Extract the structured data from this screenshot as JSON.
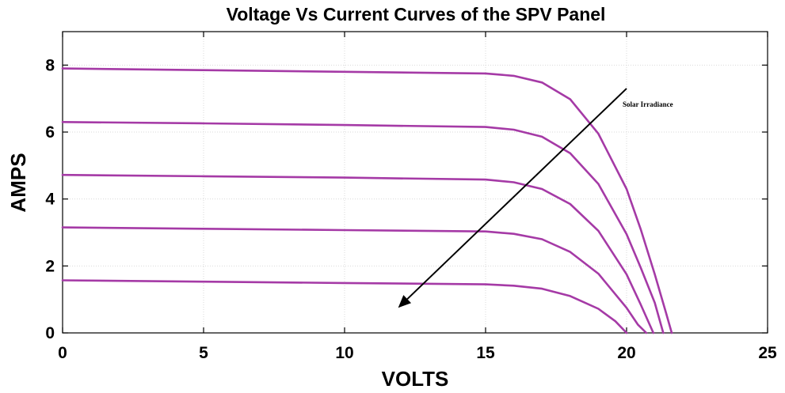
{
  "chart_data": {
    "type": "line",
    "title": "Voltage Vs Current Curves of the SPV Panel",
    "xlabel": "VOLTS",
    "ylabel": "AMPS",
    "xlim": [
      0,
      25
    ],
    "ylim": [
      0,
      9
    ],
    "xticks": [
      0,
      5,
      10,
      15,
      20,
      25
    ],
    "yticks": [
      0,
      2,
      4,
      6,
      8
    ],
    "grid": true,
    "line_color": "#a53aa6",
    "annotation": {
      "text": "Solar Irradiance",
      "arrow_from": [
        20.0,
        7.3
      ],
      "arrow_to": [
        11.9,
        0.75
      ]
    },
    "series": [
      {
        "values": [
          [
            0,
            7.9
          ],
          [
            5,
            7.85
          ],
          [
            10,
            7.8
          ],
          [
            15,
            7.75
          ],
          [
            16,
            7.68
          ],
          [
            17,
            7.48
          ],
          [
            18,
            6.98
          ],
          [
            19,
            5.95
          ],
          [
            20,
            4.3
          ],
          [
            20.5,
            3.1
          ],
          [
            21,
            1.75
          ],
          [
            21.4,
            0.6
          ],
          [
            21.6,
            0
          ]
        ]
      },
      {
        "values": [
          [
            0,
            6.3
          ],
          [
            5,
            6.26
          ],
          [
            10,
            6.21
          ],
          [
            15,
            6.15
          ],
          [
            16,
            6.07
          ],
          [
            17,
            5.86
          ],
          [
            18,
            5.37
          ],
          [
            19,
            4.45
          ],
          [
            20,
            2.95
          ],
          [
            20.5,
            1.95
          ],
          [
            21,
            0.9
          ],
          [
            21.3,
            0
          ]
        ]
      },
      {
        "values": [
          [
            0,
            4.72
          ],
          [
            5,
            4.68
          ],
          [
            10,
            4.64
          ],
          [
            15,
            4.58
          ],
          [
            16,
            4.5
          ],
          [
            17,
            4.3
          ],
          [
            18,
            3.85
          ],
          [
            19,
            3.05
          ],
          [
            20,
            1.75
          ],
          [
            20.5,
            0.85
          ],
          [
            20.95,
            0
          ]
        ]
      },
      {
        "values": [
          [
            0,
            3.15
          ],
          [
            5,
            3.11
          ],
          [
            10,
            3.07
          ],
          [
            15,
            3.03
          ],
          [
            16,
            2.96
          ],
          [
            17,
            2.8
          ],
          [
            18,
            2.42
          ],
          [
            19,
            1.77
          ],
          [
            20,
            0.75
          ],
          [
            20.4,
            0.25
          ],
          [
            20.7,
            0
          ]
        ]
      },
      {
        "values": [
          [
            0,
            1.57
          ],
          [
            5,
            1.53
          ],
          [
            10,
            1.49
          ],
          [
            15,
            1.45
          ],
          [
            16,
            1.41
          ],
          [
            17,
            1.32
          ],
          [
            18,
            1.1
          ],
          [
            19,
            0.72
          ],
          [
            19.6,
            0.35
          ],
          [
            20,
            0
          ]
        ]
      }
    ]
  }
}
